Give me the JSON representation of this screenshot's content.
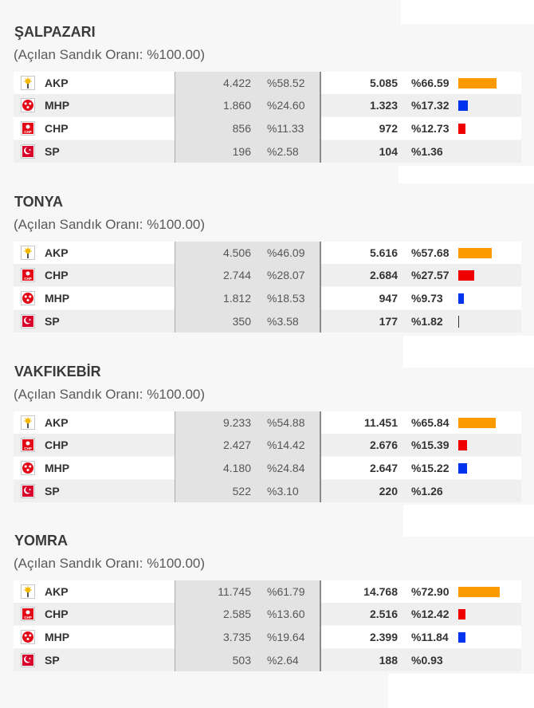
{
  "colors": {
    "akp_bar": "#fc9a00",
    "mhp_bar": "#0033ee",
    "chp_bar": "#ee0000",
    "sp_bar": "#333333"
  },
  "districts": [
    {
      "name": "ŞALPAZARI",
      "subtitle": "(Açılan Sandık Oranı: %100.00)",
      "rows": [
        {
          "party": "AKP",
          "icon": "akp-logo-icon",
          "votes_prev": "4.422",
          "pct_prev": "%58.52",
          "votes": "5.085",
          "pct": "%66.59",
          "bar_share": 0.6659
        },
        {
          "party": "MHP",
          "icon": "mhp-logo-icon",
          "votes_prev": "1.860",
          "pct_prev": "%24.60",
          "votes": "1.323",
          "pct": "%17.32",
          "bar_share": 0.1732
        },
        {
          "party": "CHP",
          "icon": "chp-logo-icon",
          "votes_prev": "856",
          "pct_prev": "%11.33",
          "votes": "972",
          "pct": "%12.73",
          "bar_share": 0.1273
        },
        {
          "party": "SP",
          "icon": "sp-logo-icon",
          "votes_prev": "196",
          "pct_prev": "%2.58",
          "votes": "104",
          "pct": "%1.36",
          "bar_share": 0.0136
        }
      ]
    },
    {
      "name": "TONYA",
      "subtitle": "(Açılan Sandık Oranı: %100.00)",
      "rows": [
        {
          "party": "AKP",
          "icon": "akp-logo-icon",
          "votes_prev": "4.506",
          "pct_prev": "%46.09",
          "votes": "5.616",
          "pct": "%57.68",
          "bar_share": 0.5768
        },
        {
          "party": "CHP",
          "icon": "chp-logo-icon",
          "votes_prev": "2.744",
          "pct_prev": "%28.07",
          "votes": "2.684",
          "pct": "%27.57",
          "bar_share": 0.2757
        },
        {
          "party": "MHP",
          "icon": "mhp-logo-icon",
          "votes_prev": "1.812",
          "pct_prev": "%18.53",
          "votes": "947",
          "pct": "%9.73",
          "bar_share": 0.0973
        },
        {
          "party": "SP",
          "icon": "sp-logo-icon",
          "votes_prev": "350",
          "pct_prev": "%3.58",
          "votes": "177",
          "pct": "%1.82",
          "bar_share": 0.0182
        }
      ]
    },
    {
      "name": "VAKFIKEBİR",
      "subtitle": "(Açılan Sandık Oranı: %100.00)",
      "rows": [
        {
          "party": "AKP",
          "icon": "akp-logo-icon",
          "votes_prev": "9.233",
          "pct_prev": "%54.88",
          "votes": "11.451",
          "pct": "%65.84",
          "bar_share": 0.6584
        },
        {
          "party": "CHP",
          "icon": "chp-logo-icon",
          "votes_prev": "2.427",
          "pct_prev": "%14.42",
          "votes": "2.676",
          "pct": "%15.39",
          "bar_share": 0.1539
        },
        {
          "party": "MHP",
          "icon": "mhp-logo-icon",
          "votes_prev": "4.180",
          "pct_prev": "%24.84",
          "votes": "2.647",
          "pct": "%15.22",
          "bar_share": 0.1522
        },
        {
          "party": "SP",
          "icon": "sp-logo-icon",
          "votes_prev": "522",
          "pct_prev": "%3.10",
          "votes": "220",
          "pct": "%1.26",
          "bar_share": 0.0126
        }
      ]
    },
    {
      "name": "YOMRA",
      "subtitle": "(Açılan Sandık Oranı: %100.00)",
      "rows": [
        {
          "party": "AKP",
          "icon": "akp-logo-icon",
          "votes_prev": "11.745",
          "pct_prev": "%61.79",
          "votes": "14.768",
          "pct": "%72.90",
          "bar_share": 0.729
        },
        {
          "party": "CHP",
          "icon": "chp-logo-icon",
          "votes_prev": "2.585",
          "pct_prev": "%13.60",
          "votes": "2.516",
          "pct": "%12.42",
          "bar_share": 0.1242
        },
        {
          "party": "MHP",
          "icon": "mhp-logo-icon",
          "votes_prev": "3.735",
          "pct_prev": "%19.64",
          "votes": "2.399",
          "pct": "%11.84",
          "bar_share": 0.1184
        },
        {
          "party": "SP",
          "icon": "sp-logo-icon",
          "votes_prev": "503",
          "pct_prev": "%2.64",
          "votes": "188",
          "pct": "%0.93",
          "bar_share": 0.0093
        }
      ]
    }
  ]
}
